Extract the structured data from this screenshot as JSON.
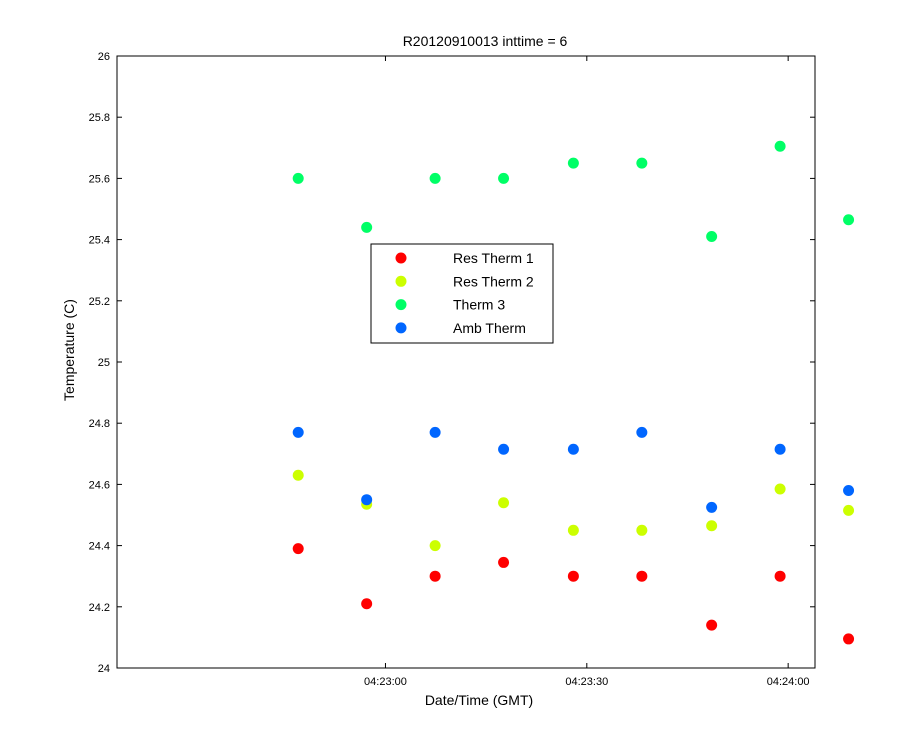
{
  "chart_data": {
    "type": "scatter",
    "title": "R20120910013 inttime = 6",
    "xlabel": "Date/Time (GMT)",
    "ylabel": "Temperature (C)",
    "x_seconds_range": [
      -20,
      32
    ],
    "ylim": [
      24,
      26
    ],
    "y_ticks": [
      "24",
      "24.2",
      "24.4",
      "24.6",
      "24.8",
      "25",
      "25.2",
      "25.4",
      "25.6",
      "25.8",
      "26"
    ],
    "x_ticks": [
      {
        "t": 0,
        "label": "04:23:00"
      },
      {
        "t": 15,
        "label": "04:23:30"
      },
      {
        "t": 30,
        "label": "04:24:00"
      }
    ],
    "x": [
      -6.5,
      -1.4,
      3.7,
      8.8,
      14,
      19.1,
      24.3,
      29.4,
      34.5
    ],
    "legend_position": "center",
    "grid": false,
    "series": [
      {
        "name": "Res Therm 1",
        "color": "#ff0000",
        "values": [
          24.39,
          24.21,
          24.3,
          24.345,
          24.3,
          24.3,
          24.14,
          24.3,
          24.095
        ]
      },
      {
        "name": "Res Therm 2",
        "color": "#ccff00",
        "values": [
          24.63,
          24.535,
          24.4,
          24.54,
          24.45,
          24.45,
          24.465,
          24.585,
          24.515
        ]
      },
      {
        "name": "Therm 3",
        "color": "#00ff66",
        "values": [
          25.6,
          25.44,
          25.6,
          25.6,
          25.65,
          25.65,
          25.41,
          25.705,
          25.465
        ]
      },
      {
        "name": "Amb Therm",
        "color": "#0066ff",
        "values": [
          24.77,
          24.55,
          24.77,
          24.715,
          24.715,
          24.77,
          24.525,
          24.715,
          24.58
        ]
      }
    ]
  }
}
